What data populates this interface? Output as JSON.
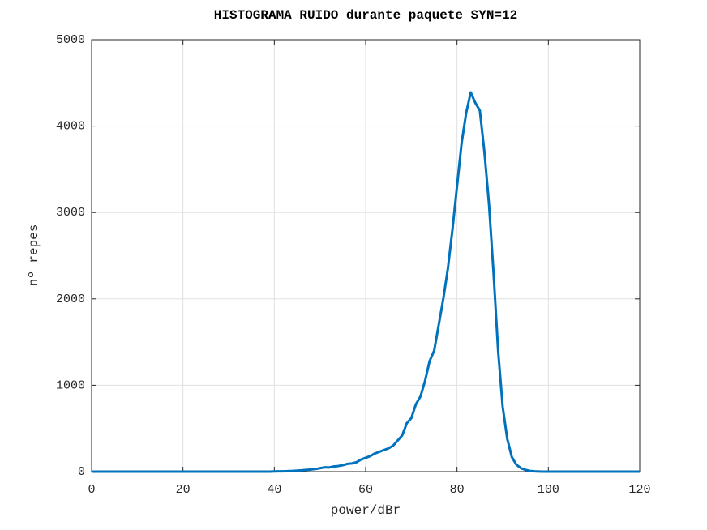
{
  "chart_data": {
    "type": "line",
    "title": "HISTOGRAMA RUIDO durante paquete SYN=12",
    "x_label": "power/dBr",
    "y_label": "nº repes",
    "x": [
      0,
      1,
      2,
      3,
      4,
      5,
      6,
      7,
      8,
      9,
      10,
      11,
      12,
      13,
      14,
      15,
      16,
      17,
      18,
      19,
      20,
      21,
      22,
      23,
      24,
      25,
      26,
      27,
      28,
      29,
      30,
      31,
      32,
      33,
      34,
      35,
      36,
      37,
      38,
      39,
      40,
      41,
      42,
      43,
      44,
      45,
      46,
      47,
      48,
      49,
      50,
      51,
      52,
      53,
      54,
      55,
      56,
      57,
      58,
      59,
      60,
      61,
      62,
      63,
      64,
      65,
      66,
      67,
      68,
      69,
      70,
      71,
      72,
      73,
      74,
      75,
      76,
      77,
      78,
      79,
      80,
      81,
      82,
      83,
      84,
      85,
      86,
      87,
      88,
      89,
      90,
      91,
      92,
      93,
      94,
      95,
      96,
      97,
      98,
      99,
      100,
      101,
      102,
      103,
      104,
      105,
      106,
      107,
      108,
      109,
      110,
      111,
      112,
      113,
      114,
      115,
      116,
      117,
      118,
      119,
      120
    ],
    "series": [
      {
        "color": "#0072bd",
        "values": [
          0,
          0,
          0,
          0,
          0,
          0,
          0,
          0,
          0,
          0,
          0,
          0,
          0,
          0,
          0,
          0,
          0,
          0,
          0,
          0,
          0,
          0,
          0,
          0,
          0,
          0,
          0,
          0,
          0,
          0,
          0,
          0,
          0,
          0,
          0,
          0,
          0,
          0,
          0,
          0,
          2,
          3,
          4,
          6,
          8,
          12,
          15,
          20,
          25,
          30,
          40,
          50,
          48,
          60,
          65,
          75,
          90,
          95,
          110,
          140,
          160,
          180,
          210,
          230,
          250,
          270,
          300,
          360,
          420,
          560,
          620,
          780,
          870,
          1050,
          1280,
          1400,
          1700,
          2000,
          2350,
          2800,
          3300,
          3800,
          4150,
          4390,
          4270,
          4180,
          3700,
          3100,
          2300,
          1400,
          750,
          380,
          170,
          80,
          40,
          20,
          8,
          3,
          1,
          0,
          0,
          0,
          0,
          0,
          0,
          0,
          0,
          0,
          0,
          0,
          0,
          0,
          0,
          0,
          0,
          0,
          0,
          0,
          0,
          0,
          0
        ]
      }
    ],
    "xlim": [
      0,
      120
    ],
    "xticks": [
      0,
      20,
      40,
      60,
      80,
      100,
      120
    ],
    "ylim": [
      0,
      5000
    ],
    "yticks": [
      0,
      1000,
      2000,
      3000,
      4000,
      5000
    ],
    "grid": true
  }
}
